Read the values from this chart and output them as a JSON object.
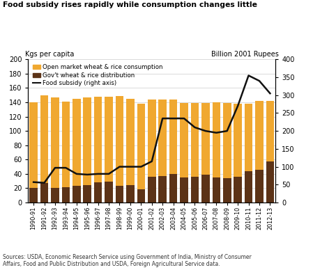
{
  "title": "Food subsidy rises rapidly while consumption changes little",
  "ylabel_left": "Kgs per capita",
  "ylabel_right": "Billion 2001 Rupees",
  "source_text": "Sources: USDA, Economic Research Service using Government of India, Ministry of Consumer\nAffairs, Food and Public Distribution and USDA, Foreign Agricultural Service data.",
  "categories": [
    "1990-91",
    "1991-92",
    "1992-93",
    "1993-94",
    "1994-95",
    "1995-96",
    "1996-97",
    "1997-98",
    "1998-99",
    "1999-00",
    "2000-01",
    "2001-02",
    "2002-03",
    "2003-04",
    "2004-05",
    "2005-06",
    "2006-07",
    "2007-08",
    "2008-09",
    "2009-10",
    "2010-11",
    "2011-12",
    "2012-13"
  ],
  "gov_dist": [
    20,
    27,
    20,
    21,
    23,
    24,
    28,
    29,
    23,
    24,
    18,
    36,
    37,
    40,
    35,
    36,
    39,
    35,
    34,
    36,
    44,
    46,
    57
  ],
  "open_market": [
    120,
    123,
    127,
    120,
    122,
    123,
    120,
    119,
    126,
    121,
    120,
    108,
    107,
    104,
    104,
    103,
    100,
    105,
    105,
    102,
    94,
    96,
    85
  ],
  "food_subsidy": [
    57,
    55,
    97,
    97,
    80,
    78,
    80,
    80,
    100,
    100,
    100,
    115,
    235,
    235,
    235,
    210,
    200,
    195,
    200,
    270,
    355,
    340,
    305
  ],
  "bar_color_open": "#F0A830",
  "bar_color_gov": "#5C3317",
  "line_color": "#111111",
  "ylim_left": [
    0,
    200
  ],
  "ylim_right": [
    0,
    400
  ],
  "yticks_left": [
    0,
    20,
    40,
    60,
    80,
    100,
    120,
    140,
    160,
    180,
    200
  ],
  "yticks_right": [
    0,
    50,
    100,
    150,
    200,
    250,
    300,
    350,
    400
  ]
}
